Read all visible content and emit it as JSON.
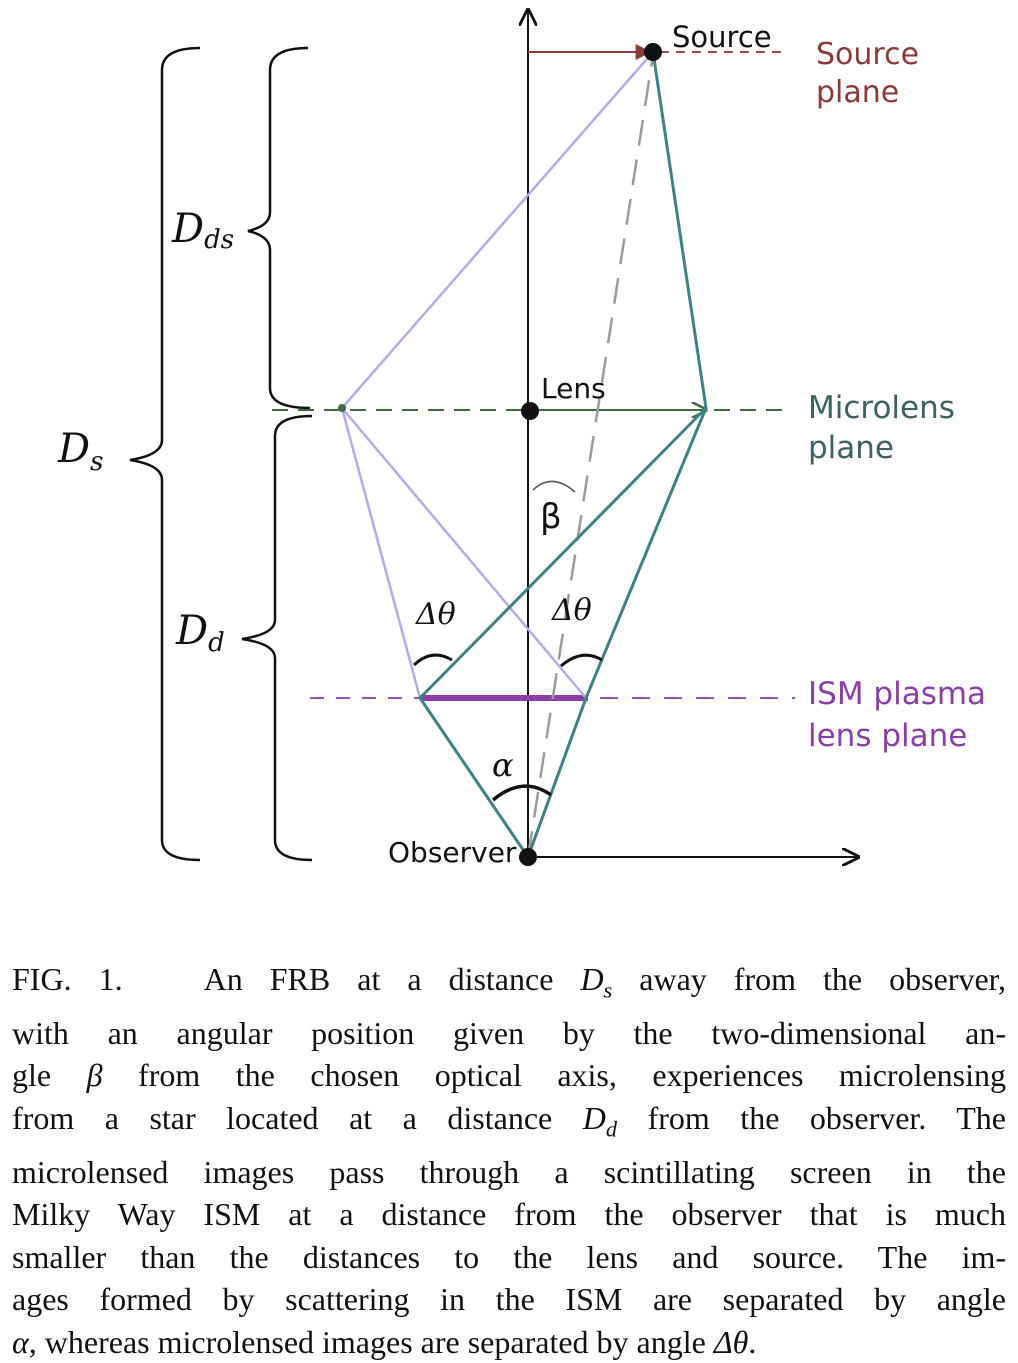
{
  "labels": {
    "source": "Source",
    "source_plane_1": "Source",
    "source_plane_2": "plane",
    "lens": "Lens",
    "microlens_plane_1": "Microlens",
    "microlens_plane_2": "plane",
    "ism_plane_1": "ISM plasma",
    "ism_plane_2": "lens plane",
    "observer": "Observer",
    "beta": "β",
    "alpha": "α",
    "delta_theta": "Δθ",
    "d_ds_main": "D",
    "d_ds_sub": "ds",
    "d_s_main": "D",
    "d_s_sub": "s",
    "d_d_main": "D",
    "d_d_sub": "d"
  },
  "colors": {
    "source_plane": "#8b3a3a",
    "microlens_plane": "#3f6b3f",
    "microlens_text": "#3d6060",
    "ism_plane": "#8a3fa8",
    "teal_rays": "#3f8080",
    "lavender_rays": "#b3abe6",
    "dashed_axis": "#9a9a9a"
  },
  "caption": {
    "fig": "FIG. 1.",
    "lines": [
      [
        "An FRB at a distance ",
        "D_s",
        " away from the observer,"
      ],
      [
        "with an angular position given by the two-dimensional an-"
      ],
      [
        "gle ",
        "β",
        " from the chosen optical axis, experiences microlensing"
      ],
      [
        "from a star located at a distance ",
        "D_d",
        " from the observer. The"
      ],
      [
        "microlensed images pass through a scintillating screen in the"
      ],
      [
        "Milky Way ISM at a distance from the observer that is much"
      ],
      [
        "smaller than the distances to the lens and source. The im-"
      ],
      [
        "ages formed by scattering in the ISM are separated by angle"
      ],
      [
        "α",
        ", whereas microlensed images are separated by angle ",
        "Δθ",
        "."
      ]
    ]
  }
}
